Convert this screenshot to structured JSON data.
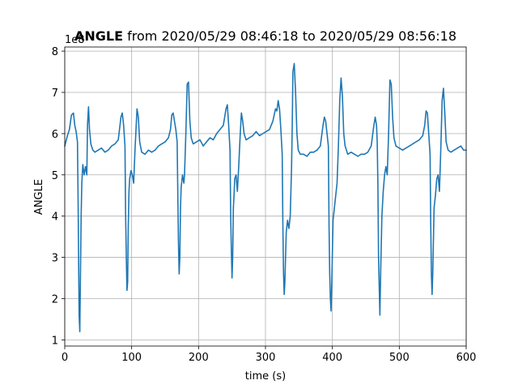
{
  "chart_data": {
    "type": "line",
    "title": {
      "bold": "ANGLE",
      "rest": " from 2020/05/29 08:46:18 to 2020/05/29 08:56:18"
    },
    "xlabel": "time (s)",
    "ylabel": "ANGLE",
    "offset_label": "1e8",
    "xlim": [
      0,
      600
    ],
    "ylim": [
      0.85,
      8.1
    ],
    "xticks": [
      0,
      100,
      200,
      300,
      400,
      500,
      600
    ],
    "yticks": [
      1,
      2,
      3,
      4,
      5,
      6,
      7,
      8
    ],
    "grid": true,
    "color": "#1f77b4",
    "series": [
      {
        "values": [
          [
            0,
            5.7
          ],
          [
            4,
            5.95
          ],
          [
            7,
            6.1
          ],
          [
            10,
            6.45
          ],
          [
            13,
            6.5
          ],
          [
            15,
            6.2
          ],
          [
            17,
            6.05
          ],
          [
            19,
            5.8
          ],
          [
            20,
            4.3
          ],
          [
            21,
            2.5
          ],
          [
            21.5,
            1.6
          ],
          [
            22.5,
            1.2
          ],
          [
            23.5,
            2.6
          ],
          [
            24.5,
            4.0
          ],
          [
            25.5,
            4.8
          ],
          [
            27,
            5.25
          ],
          [
            29,
            5.0
          ],
          [
            31,
            5.2
          ],
          [
            33,
            5.0
          ],
          [
            34,
            6.2
          ],
          [
            35.5,
            6.65
          ],
          [
            37,
            6.1
          ],
          [
            39,
            5.75
          ],
          [
            42,
            5.6
          ],
          [
            45,
            5.55
          ],
          [
            50,
            5.6
          ],
          [
            55,
            5.65
          ],
          [
            60,
            5.55
          ],
          [
            65,
            5.6
          ],
          [
            70,
            5.7
          ],
          [
            75,
            5.75
          ],
          [
            80,
            5.85
          ],
          [
            84,
            6.4
          ],
          [
            86,
            6.5
          ],
          [
            88,
            6.2
          ],
          [
            90,
            5.7
          ],
          [
            91,
            4.0
          ],
          [
            92,
            3.0
          ],
          [
            93,
            2.2
          ],
          [
            94,
            2.4
          ],
          [
            95,
            3.8
          ],
          [
            96,
            4.6
          ],
          [
            97,
            4.9
          ],
          [
            99,
            5.1
          ],
          [
            101,
            5.0
          ],
          [
            103,
            4.8
          ],
          [
            105,
            5.6
          ],
          [
            108,
            6.6
          ],
          [
            110,
            6.4
          ],
          [
            112,
            5.8
          ],
          [
            115,
            5.55
          ],
          [
            120,
            5.5
          ],
          [
            125,
            5.6
          ],
          [
            130,
            5.55
          ],
          [
            135,
            5.6
          ],
          [
            140,
            5.7
          ],
          [
            145,
            5.75
          ],
          [
            150,
            5.8
          ],
          [
            155,
            5.9
          ],
          [
            158,
            6.1
          ],
          [
            160,
            6.45
          ],
          [
            162,
            6.5
          ],
          [
            164,
            6.3
          ],
          [
            166,
            6.1
          ],
          [
            168,
            5.8
          ],
          [
            169,
            4.5
          ],
          [
            170,
            3.3
          ],
          [
            171,
            2.6
          ],
          [
            172,
            3.0
          ],
          [
            173,
            4.2
          ],
          [
            174,
            4.7
          ],
          [
            176,
            5.0
          ],
          [
            178,
            4.8
          ],
          [
            179,
            5.0
          ],
          [
            181,
            6.0
          ],
          [
            183,
            7.2
          ],
          [
            185,
            7.25
          ],
          [
            187,
            6.3
          ],
          [
            189,
            5.9
          ],
          [
            192,
            5.75
          ],
          [
            197,
            5.8
          ],
          [
            202,
            5.85
          ],
          [
            207,
            5.7
          ],
          [
            212,
            5.8
          ],
          [
            217,
            5.9
          ],
          [
            222,
            5.85
          ],
          [
            227,
            6.0
          ],
          [
            232,
            6.1
          ],
          [
            237,
            6.2
          ],
          [
            241,
            6.6
          ],
          [
            243,
            6.7
          ],
          [
            245,
            6.2
          ],
          [
            247,
            5.6
          ],
          [
            248,
            4.0
          ],
          [
            249,
            3.2
          ],
          [
            250,
            2.5
          ],
          [
            251,
            3.0
          ],
          [
            252,
            4.2
          ],
          [
            253,
            4.5
          ],
          [
            254,
            4.9
          ],
          [
            256,
            5.0
          ],
          [
            258,
            4.6
          ],
          [
            260,
            5.2
          ],
          [
            262,
            5.9
          ],
          [
            264,
            6.5
          ],
          [
            266,
            6.3
          ],
          [
            268,
            6.0
          ],
          [
            271,
            5.85
          ],
          [
            276,
            5.9
          ],
          [
            281,
            5.95
          ],
          [
            286,
            6.05
          ],
          [
            291,
            5.95
          ],
          [
            296,
            6.0
          ],
          [
            301,
            6.05
          ],
          [
            306,
            6.1
          ],
          [
            311,
            6.3
          ],
          [
            315,
            6.6
          ],
          [
            317,
            6.55
          ],
          [
            319,
            6.8
          ],
          [
            321,
            6.6
          ],
          [
            323,
            6.1
          ],
          [
            325,
            5.5
          ],
          [
            326,
            3.8
          ],
          [
            327,
            2.6
          ],
          [
            328,
            2.1
          ],
          [
            329,
            2.4
          ],
          [
            331,
            3.6
          ],
          [
            333,
            3.9
          ],
          [
            335,
            3.7
          ],
          [
            337,
            4.0
          ],
          [
            339,
            5.2
          ],
          [
            340,
            6.2
          ],
          [
            341,
            7.5
          ],
          [
            343,
            7.7
          ],
          [
            345,
            7.0
          ],
          [
            347,
            6.0
          ],
          [
            349,
            5.6
          ],
          [
            352,
            5.5
          ],
          [
            357,
            5.5
          ],
          [
            362,
            5.45
          ],
          [
            367,
            5.55
          ],
          [
            372,
            5.55
          ],
          [
            377,
            5.6
          ],
          [
            382,
            5.7
          ],
          [
            386,
            6.2
          ],
          [
            388,
            6.4
          ],
          [
            390,
            6.3
          ],
          [
            392,
            6.0
          ],
          [
            394,
            5.7
          ],
          [
            395,
            3.8
          ],
          [
            396,
            2.6
          ],
          [
            397,
            2.0
          ],
          [
            398,
            1.7
          ],
          [
            399,
            2.3
          ],
          [
            401,
            3.9
          ],
          [
            403,
            4.2
          ],
          [
            405,
            4.5
          ],
          [
            407,
            4.8
          ],
          [
            409,
            5.7
          ],
          [
            411,
            6.8
          ],
          [
            413,
            7.35
          ],
          [
            415,
            6.9
          ],
          [
            417,
            6.0
          ],
          [
            419,
            5.7
          ],
          [
            423,
            5.5
          ],
          [
            428,
            5.55
          ],
          [
            433,
            5.5
          ],
          [
            438,
            5.45
          ],
          [
            443,
            5.5
          ],
          [
            448,
            5.5
          ],
          [
            453,
            5.55
          ],
          [
            458,
            5.7
          ],
          [
            462,
            6.2
          ],
          [
            464,
            6.4
          ],
          [
            466,
            6.2
          ],
          [
            467,
            5.8
          ],
          [
            468,
            4.8
          ],
          [
            469,
            3.0
          ],
          [
            470,
            2.3
          ],
          [
            471,
            1.6
          ],
          [
            472,
            2.5
          ],
          [
            474,
            4.0
          ],
          [
            476,
            4.6
          ],
          [
            478,
            5.0
          ],
          [
            480,
            5.2
          ],
          [
            482,
            5.0
          ],
          [
            484,
            6.0
          ],
          [
            486,
            7.3
          ],
          [
            488,
            7.2
          ],
          [
            490,
            6.4
          ],
          [
            492,
            5.9
          ],
          [
            495,
            5.7
          ],
          [
            500,
            5.65
          ],
          [
            505,
            5.6
          ],
          [
            510,
            5.65
          ],
          [
            515,
            5.7
          ],
          [
            520,
            5.75
          ],
          [
            525,
            5.8
          ],
          [
            530,
            5.85
          ],
          [
            535,
            5.95
          ],
          [
            538,
            6.2
          ],
          [
            540,
            6.55
          ],
          [
            542,
            6.5
          ],
          [
            544,
            6.0
          ],
          [
            546,
            5.5
          ],
          [
            547,
            3.8
          ],
          [
            548,
            2.6
          ],
          [
            549,
            2.1
          ],
          [
            550,
            2.6
          ],
          [
            552,
            4.2
          ],
          [
            554,
            4.5
          ],
          [
            556,
            4.9
          ],
          [
            558,
            5.0
          ],
          [
            560,
            4.6
          ],
          [
            562,
            5.6
          ],
          [
            564,
            6.8
          ],
          [
            566,
            7.1
          ],
          [
            568,
            6.5
          ],
          [
            570,
            5.8
          ],
          [
            573,
            5.6
          ],
          [
            577,
            5.55
          ],
          [
            582,
            5.6
          ],
          [
            587,
            5.65
          ],
          [
            592,
            5.7
          ],
          [
            596,
            5.6
          ],
          [
            600,
            5.6
          ]
        ]
      }
    ]
  }
}
